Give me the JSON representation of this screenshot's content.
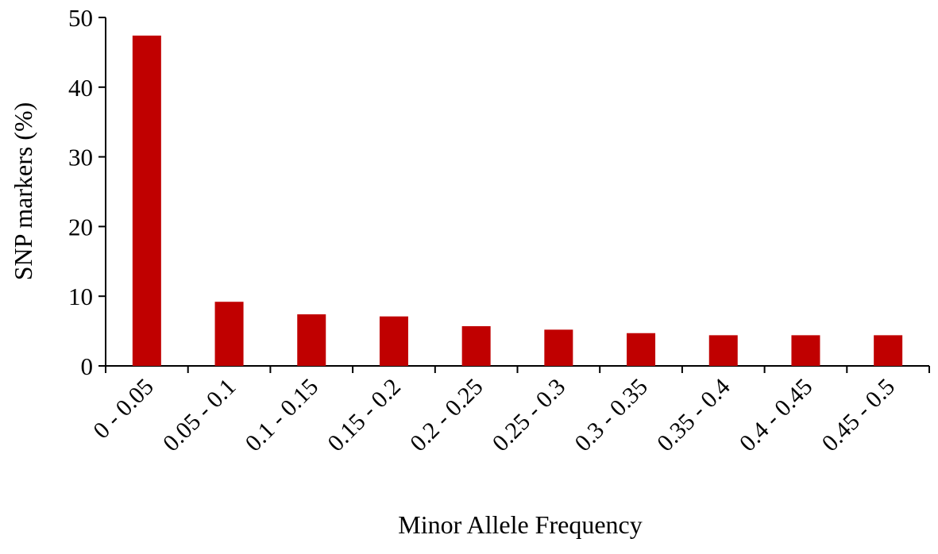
{
  "chart_data": {
    "type": "bar",
    "x_label": "Minor Allele Frequency",
    "y_label": "SNP markers (%)",
    "categories": [
      "0 - 0.05",
      "0.05 - 0.1",
      "0.1 - 0.15",
      "0.15 - 0.2",
      "0.2 - 0.25",
      "0.25 - 0.3",
      "0.3 - 0.35",
      "0.35 - 0.4",
      "0.4 - 0.45",
      "0.45 - 0.5"
    ],
    "values": [
      47.4,
      9.2,
      7.4,
      7.1,
      5.7,
      5.2,
      4.7,
      4.4,
      4.4,
      4.4
    ],
    "color": "#c00000",
    "ylim": [
      0,
      50
    ],
    "yticks": [
      0,
      10,
      20,
      30,
      40,
      50
    ],
    "grid": false
  }
}
